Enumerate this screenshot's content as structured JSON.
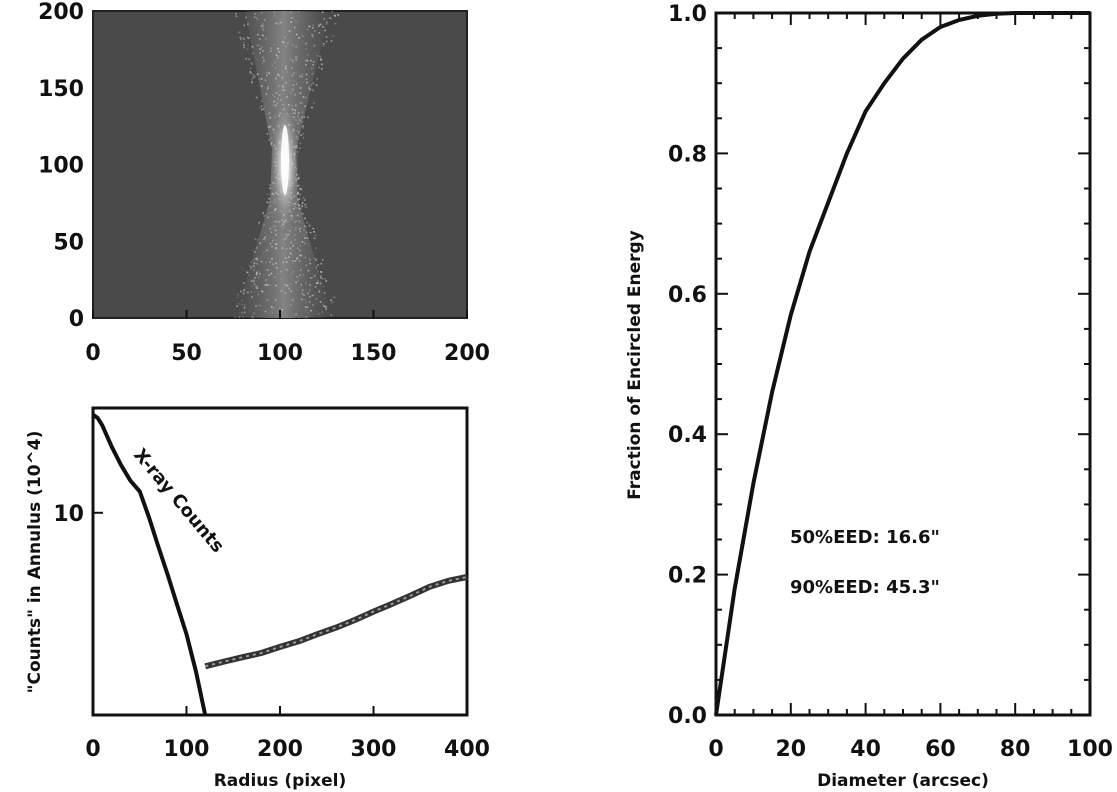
{
  "chart_data": [
    {
      "type": "heatmap",
      "title": "",
      "xlabel": "",
      "ylabel": "",
      "xlim": [
        0,
        200
      ],
      "ylim": [
        0,
        200
      ],
      "x_ticks": [
        "0",
        "50",
        "100",
        "150",
        "200"
      ],
      "y_ticks": [
        "0",
        "50",
        "100",
        "150",
        "200"
      ],
      "description_values": {
        "background_level": "uniform dark gray",
        "source_center": [
          103,
          113
        ],
        "source_shape": "bright elongated vertical core with hourglass-shaped scatter widening toward top and bottom"
      },
      "colors": {
        "background": "#4a4a4a",
        "core": "#f2f2f2"
      }
    },
    {
      "type": "line",
      "title": "",
      "xlabel": "Radius (pixel)",
      "ylabel": "\"Counts\" in Annulus (10^4)",
      "ylabel_text": "\"Counts\" in Annulus (10^4)",
      "xlim": [
        0,
        400
      ],
      "ylim": [
        1.2,
        30
      ],
      "yscale": "log",
      "x_ticks": [
        "0",
        "100",
        "200",
        "300",
        "400"
      ],
      "y_ticks": [
        "10"
      ],
      "annotations": [
        "X-ray Counts"
      ],
      "series": [
        {
          "x": [
            0,
            5,
            10,
            20,
            30,
            40,
            50,
            60,
            70,
            80,
            90,
            100,
            110,
            120
          ],
          "y": [
            28,
            27,
            25,
            20,
            16.5,
            14,
            12.5,
            9.5,
            7,
            5.2,
            3.8,
            2.8,
            1.9,
            1.2
          ]
        },
        {
          "x": [
            120,
            140,
            160,
            180,
            200,
            220,
            240,
            260,
            280,
            300,
            320,
            340,
            360,
            380,
            400
          ],
          "y": [
            2.0,
            2.1,
            2.2,
            2.3,
            2.45,
            2.6,
            2.8,
            3.0,
            3.25,
            3.55,
            3.85,
            4.2,
            4.6,
            4.9,
            5.1
          ]
        }
      ]
    },
    {
      "type": "line",
      "title": "",
      "xlabel": "Diameter (arcsec)",
      "ylabel": "Fraction of Encircled Energy",
      "xlim": [
        0,
        100
      ],
      "ylim": [
        0,
        1.0
      ],
      "x_ticks": [
        "0",
        "20",
        "40",
        "60",
        "80",
        "100"
      ],
      "y_ticks": [
        "0.0",
        "0.2",
        "0.4",
        "0.6",
        "0.8",
        "1.0"
      ],
      "annotations": [
        "50%EED: 16.6\"",
        "90%EED: 45.3\""
      ],
      "series": [
        {
          "x": [
            0,
            5,
            10,
            15,
            20,
            25,
            30,
            35,
            40,
            45,
            50,
            55,
            60,
            65,
            70,
            75,
            80,
            85,
            90,
            95,
            100
          ],
          "y": [
            0,
            0.18,
            0.33,
            0.46,
            0.57,
            0.66,
            0.73,
            0.8,
            0.86,
            0.9,
            0.935,
            0.962,
            0.98,
            0.99,
            0.996,
            0.999,
            1.0,
            1.0,
            1.0,
            1.0,
            1.0
          ]
        }
      ]
    }
  ]
}
